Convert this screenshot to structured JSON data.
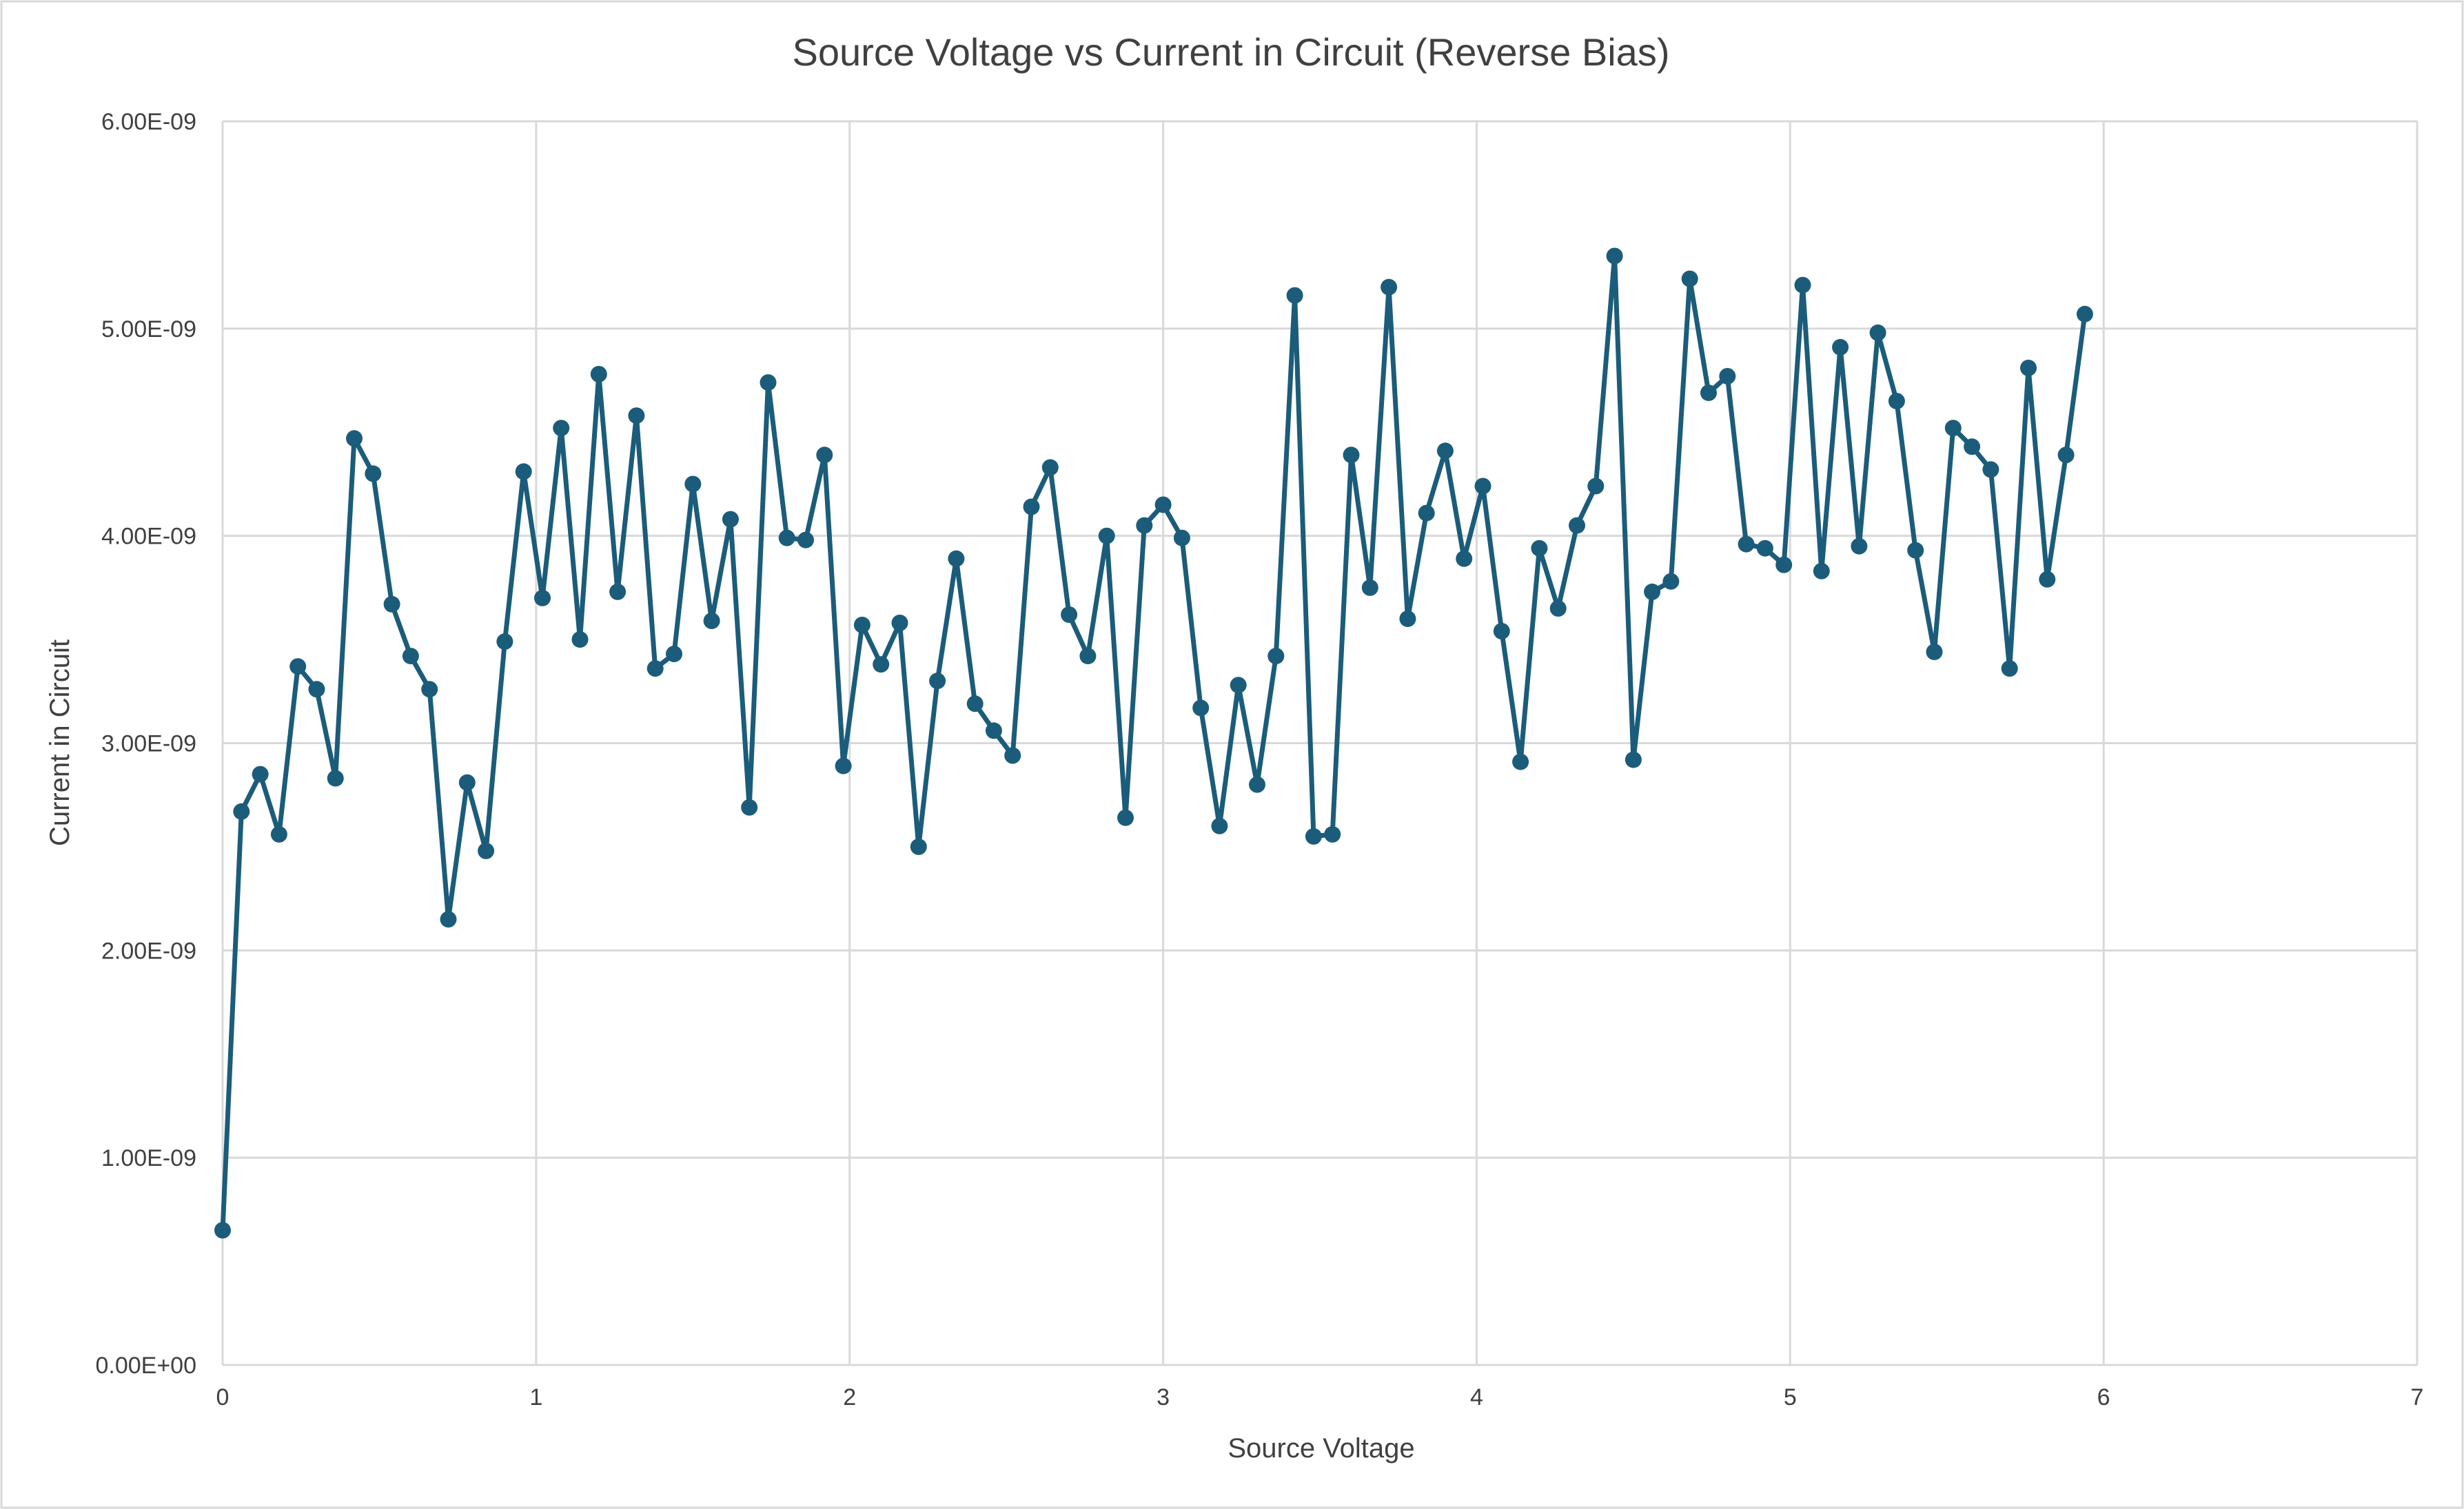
{
  "chart_data": {
    "type": "line",
    "title": "Source Voltage vs Current in Circuit (Reverse Bias)",
    "xlabel": "Source Voltage",
    "ylabel": "Current in Circuit",
    "xlim": [
      0,
      7
    ],
    "ylim": [
      0,
      6e-09
    ],
    "x_ticks": [
      "0",
      "1",
      "2",
      "3",
      "4",
      "5",
      "6",
      "7"
    ],
    "y_ticks": [
      "0.00E+00",
      "1.00E-09",
      "2.00E-09",
      "3.00E-09",
      "4.00E-09",
      "5.00E-09",
      "6.00E-09"
    ],
    "grid": true,
    "legend": "none",
    "markers": true,
    "series_color": "#1b5c7a",
    "grid_color": "#d9d9d9",
    "series": [
      {
        "x": [
          0,
          0.06,
          0.12,
          0.18,
          0.24,
          0.3,
          0.36,
          0.42,
          0.48,
          0.54,
          0.6,
          0.66,
          0.72,
          0.78,
          0.84,
          0.9,
          0.96,
          1.02,
          1.08,
          1.14,
          1.2,
          1.26,
          1.32,
          1.38,
          1.44,
          1.5,
          1.56,
          1.62,
          1.68,
          1.74,
          1.8,
          1.86,
          1.92,
          1.98,
          2.04,
          2.1,
          2.16,
          2.22,
          2.28,
          2.34,
          2.4,
          2.46,
          2.52,
          2.58,
          2.64,
          2.7,
          2.76,
          2.82,
          2.88,
          2.94,
          3.0,
          3.06,
          3.12,
          3.18,
          3.24,
          3.3,
          3.36,
          3.42,
          3.48,
          3.54,
          3.6,
          3.66,
          3.72,
          3.78,
          3.84,
          3.9,
          3.96,
          4.02,
          4.08,
          4.14,
          4.2,
          4.26,
          4.32,
          4.38,
          4.44,
          4.5,
          4.56,
          4.62,
          4.68,
          4.74,
          4.8,
          4.86,
          4.92,
          4.98,
          5.04,
          5.1,
          5.16,
          5.22,
          5.28,
          5.34,
          5.4,
          5.46,
          5.52,
          5.58,
          5.64,
          5.7,
          5.76,
          5.82,
          5.88,
          5.94
        ],
        "y": [
          6.5e-10,
          2.67e-09,
          2.85e-09,
          2.56e-09,
          3.37e-09,
          3.26e-09,
          2.83e-09,
          4.47e-09,
          4.3e-09,
          3.67e-09,
          3.42e-09,
          3.26e-09,
          2.15e-09,
          2.81e-09,
          2.48e-09,
          3.49e-09,
          4.31e-09,
          3.7e-09,
          4.52e-09,
          3.5e-09,
          4.78e-09,
          3.73e-09,
          4.58e-09,
          3.36e-09,
          3.43e-09,
          4.25e-09,
          3.59e-09,
          4.08e-09,
          2.69e-09,
          4.74e-09,
          3.99e-09,
          3.98e-09,
          4.39e-09,
          2.89e-09,
          3.57e-09,
          3.38e-09,
          3.58e-09,
          2.5e-09,
          3.3e-09,
          3.89e-09,
          3.19e-09,
          3.06e-09,
          2.94e-09,
          4.14e-09,
          4.33e-09,
          3.62e-09,
          3.42e-09,
          4e-09,
          2.64e-09,
          4.05e-09,
          4.15e-09,
          3.99e-09,
          3.17e-09,
          2.6e-09,
          3.28e-09,
          2.8e-09,
          3.42e-09,
          5.16e-09,
          2.55e-09,
          2.56e-09,
          4.39e-09,
          3.75e-09,
          5.2e-09,
          3.6e-09,
          4.11e-09,
          4.41e-09,
          3.89e-09,
          4.24e-09,
          3.54e-09,
          2.91e-09,
          3.94e-09,
          3.65e-09,
          4.05e-09,
          4.24e-09,
          5.35e-09,
          2.92e-09,
          3.73e-09,
          3.78e-09,
          5.24e-09,
          4.69e-09,
          4.77e-09,
          3.96e-09,
          3.94e-09,
          3.86e-09,
          5.21e-09,
          3.83e-09,
          4.91e-09,
          3.95e-09,
          4.98e-09,
          4.65e-09,
          3.93e-09,
          3.44e-09,
          4.52e-09,
          4.43e-09,
          4.32e-09,
          3.36e-09,
          4.81e-09,
          3.79e-09,
          4.39e-09,
          5.07e-09
        ]
      }
    ]
  }
}
